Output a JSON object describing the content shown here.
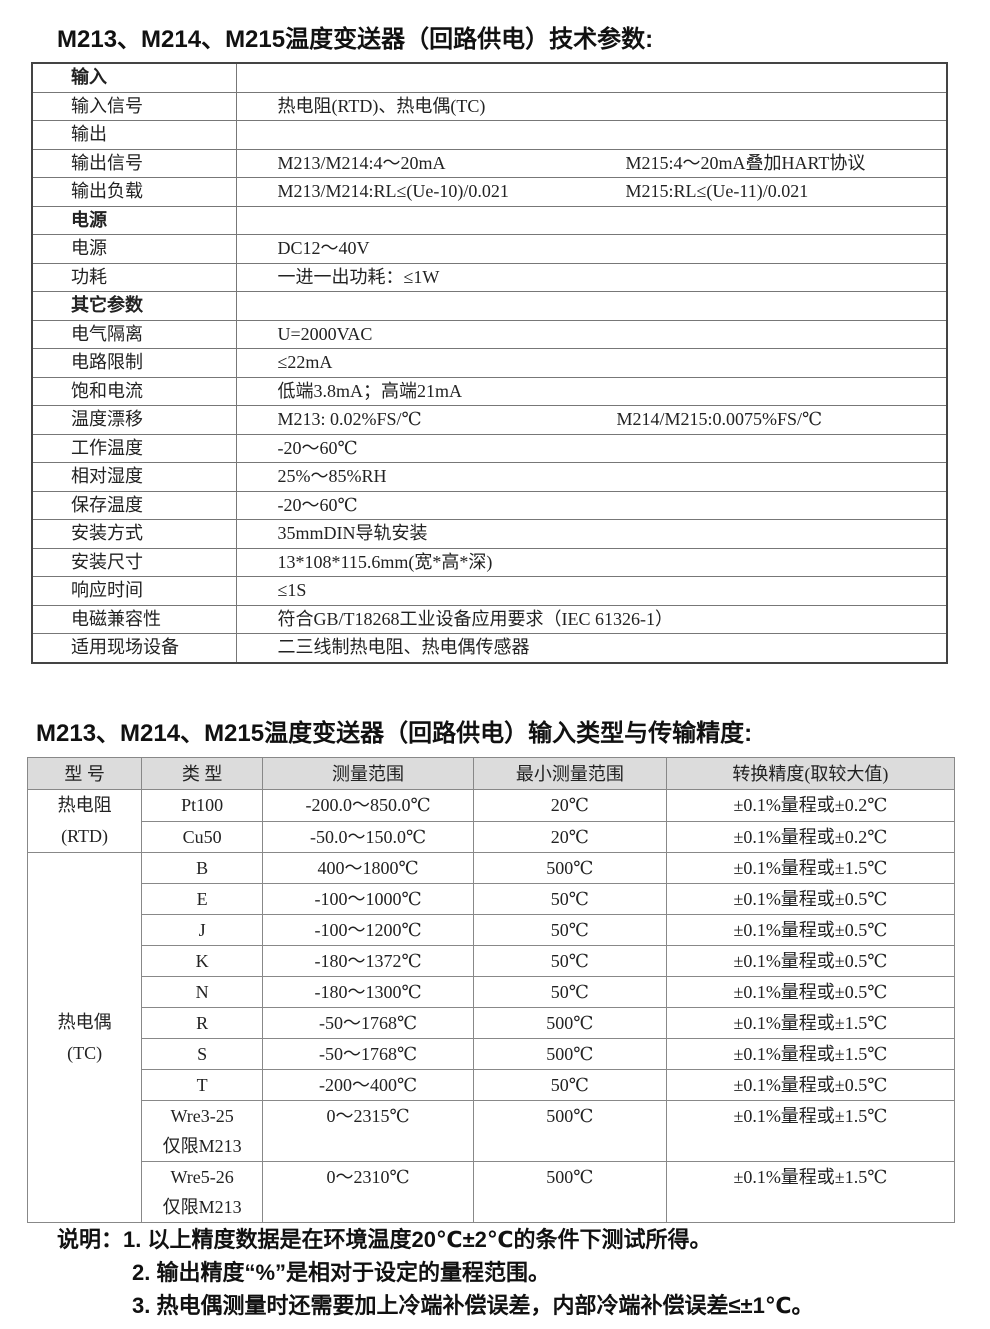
{
  "title1": "M213、M214、M215温度变送器（回路供电）技术参数:",
  "spec_rows": [
    {
      "key": "输入",
      "section": true,
      "value": "",
      "value2": ""
    },
    {
      "key": "输入信号",
      "value": "热电阻(RTD)、热电偶(TC)",
      "value2": ""
    },
    {
      "key": "输出",
      "section": false,
      "value": "",
      "value2": ""
    },
    {
      "key": "输出信号",
      "value": "M213/M214:4～20mA",
      "value2": "M215:4～20mA叠加HART协议"
    },
    {
      "key": "输出负载",
      "value": "M213/M214:RL≤(Ue-10)/0.021",
      "value2": "M215:RL≤(Ue-11)/0.021"
    },
    {
      "key": "电源",
      "section": true,
      "value": "",
      "value2": ""
    },
    {
      "key": "电源",
      "value": "DC12～40V",
      "value2": ""
    },
    {
      "key": "功耗",
      "value": "一进一出功耗：≤1W",
      "value2": ""
    },
    {
      "key": "其它参数",
      "section": true,
      "value": "",
      "value2": ""
    },
    {
      "key": "电气隔离",
      "value": "U=2000VAC",
      "value2": ""
    },
    {
      "key": "电路限制",
      "value": "≤22mA",
      "value2": ""
    },
    {
      "key": "饱和电流",
      "value": "低端3.8mA；高端21mA",
      "value2": ""
    },
    {
      "key": "温度漂移",
      "value": "M213: 0.02%FS/℃",
      "value2": "M214/M215:0.0075%FS/℃"
    },
    {
      "key": "工作温度",
      "value": "-20～60℃",
      "value2": ""
    },
    {
      "key": "相对湿度",
      "value": "25%～85%RH",
      "value2": ""
    },
    {
      "key": "保存温度",
      "value": "-20～60℃",
      "value2": ""
    },
    {
      "key": "安装方式",
      "value": "35mmDIN导轨安装",
      "value2": ""
    },
    {
      "key": "安装尺寸",
      "value": "13*108*115.6mm(宽*高*深)",
      "value2": ""
    },
    {
      "key": "响应时间",
      "value": "≤1S",
      "value2": ""
    },
    {
      "key": "电磁兼容性",
      "value": "符合GB/T18268工业设备应用要求（IEC 61326-1）",
      "value2": ""
    },
    {
      "key": "适用现场设备",
      "value": "二三线制热电阻、热电偶传感器",
      "value2": ""
    }
  ],
  "title2": "M213、M214、M215温度变送器（回路供电）输入类型与传输精度:",
  "accuracy_headers": [
    "型 号",
    "类 型",
    "测量范围",
    "最小测量范围",
    "转换精度(取较大值)"
  ],
  "groups": [
    {
      "model": [
        "热电阻",
        "(RTD)"
      ],
      "rows": [
        [
          "Pt100",
          "-200.0～850.0℃",
          "20℃",
          "±0.1%量程或±0.2℃"
        ],
        [
          "Cu50",
          "-50.0～150.0℃",
          "20℃",
          "±0.1%量程或±0.2℃"
        ]
      ]
    },
    {
      "model": [
        "热电偶",
        "(TC)"
      ],
      "rows": [
        [
          "B",
          "400～1800℃",
          "500℃",
          "±0.1%量程或±1.5℃"
        ],
        [
          "E",
          "-100～1000℃",
          "50℃",
          "±0.1%量程或±0.5℃"
        ],
        [
          "J",
          "-100～1200℃",
          "50℃",
          "±0.1%量程或±0.5℃"
        ],
        [
          "K",
          "-180～1372℃",
          "50℃",
          "±0.1%量程或±0.5℃"
        ],
        [
          "N",
          "-180～1300℃",
          "50℃",
          "±0.1%量程或±0.5℃"
        ],
        [
          "R",
          "-50～1768℃",
          "500℃",
          "±0.1%量程或±1.5℃"
        ],
        [
          "S",
          "-50～1768℃",
          "500℃",
          "±0.1%量程或±1.5℃"
        ],
        [
          "T",
          "-200～400℃",
          "50℃",
          "±0.1%量程或±0.5℃"
        ],
        [
          "Wre3-25 仅限M213",
          "0～2315℃",
          "500℃",
          "±0.1%量程或±1.5℃"
        ],
        [
          "Wre5-26 仅限M213",
          "0～2310℃",
          "500℃",
          "±0.1%量程或±1.5℃"
        ]
      ]
    }
  ],
  "notes": [
    "说明：1. 以上精度数据是在环境温度20℃±2℃的条件下测试所得。",
    "2. 输出精度“%”是相对于设定的量程范围。",
    "3. 热电偶测量时还需要加上冷端补偿误差，内部冷端补偿误差≤±1℃。"
  ]
}
